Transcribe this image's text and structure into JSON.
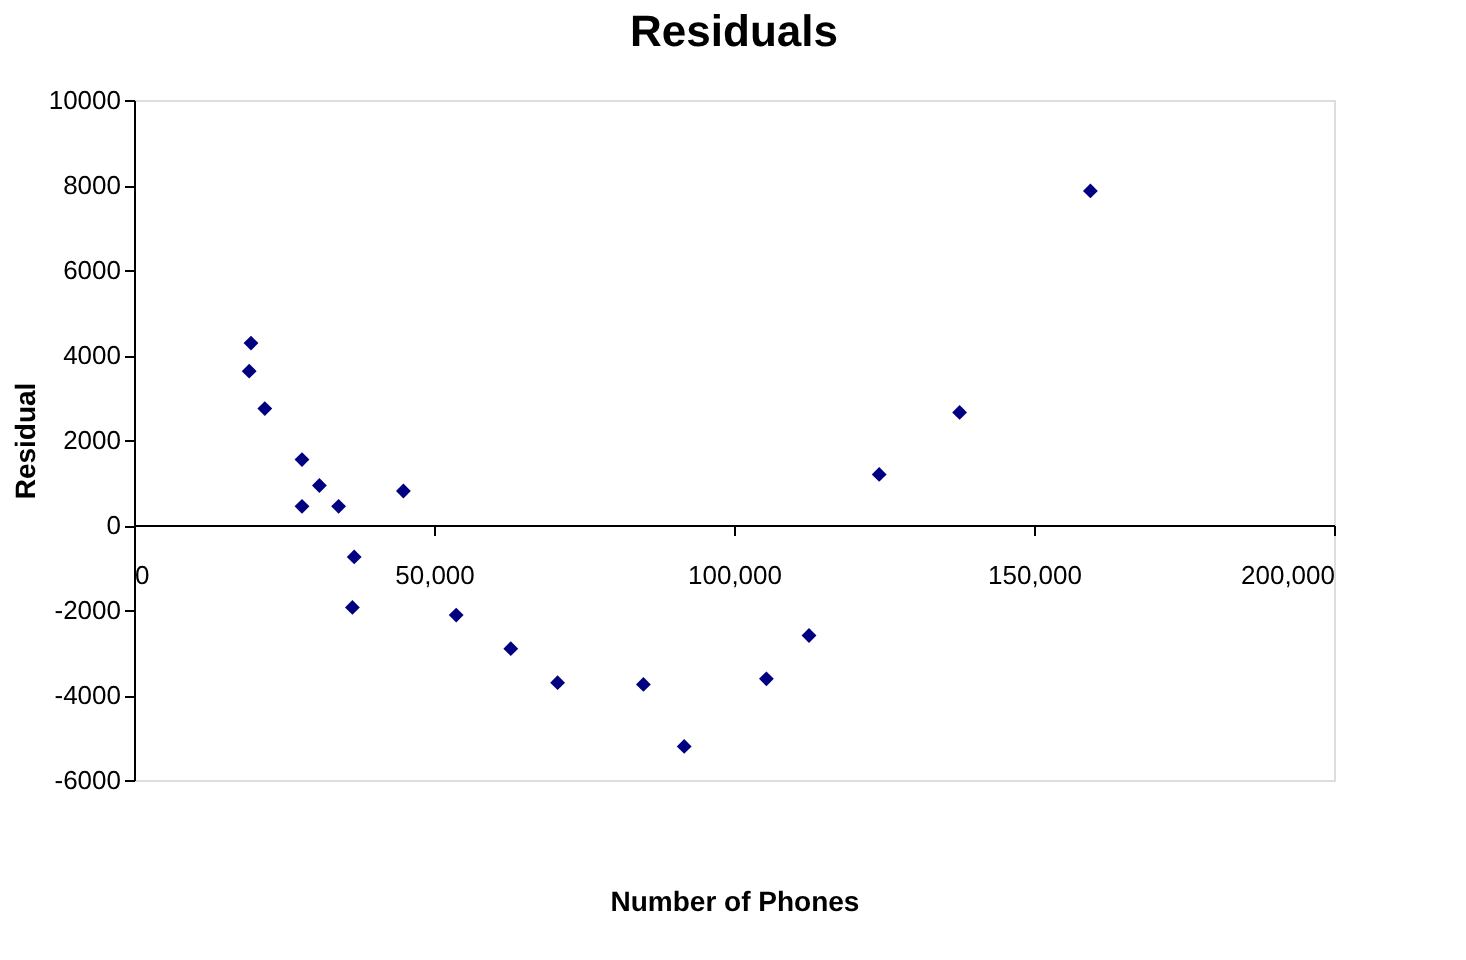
{
  "chart_data": {
    "type": "scatter",
    "title": "Residuals",
    "xlabel": "Number of Phones",
    "ylabel": "Residual",
    "x": [
      19200,
      19500,
      21800,
      28000,
      28000,
      30900,
      34100,
      36700,
      36400,
      44900,
      53700,
      62800,
      70600,
      84900,
      91700,
      105400,
      112500,
      124200,
      137600,
      159400
    ],
    "series": [
      {
        "color": "#000080",
        "values": [
          3620,
          4280,
          2740,
          1540,
          440,
          930,
          440,
          -750,
          -1940,
          800,
          -2120,
          -2910,
          -3710,
          -3750,
          -5210,
          -3620,
          -2600,
          1190,
          2650,
          7860
        ]
      }
    ],
    "xlim": [
      0,
      200000
    ],
    "xticks": [
      {
        "value": 0,
        "label": "0"
      },
      {
        "value": 50000,
        "label": "50,000"
      },
      {
        "value": 100000,
        "label": "100,000"
      },
      {
        "value": 150000,
        "label": "150,000"
      },
      {
        "value": 200000,
        "label": "200,000"
      }
    ],
    "ylim": [
      -6000,
      10000
    ],
    "yticks": [
      -6000,
      -4000,
      -2000,
      0,
      2000,
      4000,
      6000,
      8000,
      10000
    ],
    "marker": "diamond",
    "grid": false
  }
}
